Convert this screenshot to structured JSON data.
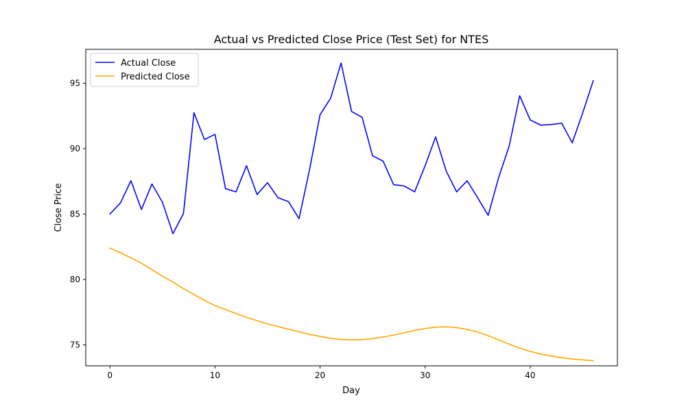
{
  "chart_data": {
    "type": "line",
    "title": "Actual vs Predicted Close Price (Test Set) for NTES",
    "xlabel": "Day",
    "ylabel": "Close Price",
    "xlim": [
      -2.3,
      48.3
    ],
    "ylim": [
      73.4,
      97.6
    ],
    "xticks": [
      0,
      10,
      20,
      30,
      40
    ],
    "yticks": [
      75,
      80,
      85,
      90,
      95
    ],
    "grid": false,
    "legend_position": "upper-left",
    "x": [
      0,
      1,
      2,
      3,
      4,
      5,
      6,
      7,
      8,
      9,
      10,
      11,
      12,
      13,
      14,
      15,
      16,
      17,
      18,
      19,
      20,
      21,
      22,
      23,
      24,
      25,
      26,
      27,
      28,
      29,
      30,
      31,
      32,
      33,
      34,
      35,
      36,
      37,
      38,
      39,
      40,
      41,
      42,
      43,
      44,
      45,
      46
    ],
    "series": [
      {
        "name": "Actual Close",
        "color": "#0000ff",
        "values": [
          85.0,
          85.85,
          87.55,
          85.35,
          87.3,
          85.9,
          83.5,
          85.05,
          92.75,
          90.7,
          91.1,
          86.95,
          86.7,
          88.7,
          86.5,
          87.4,
          86.25,
          85.95,
          84.65,
          88.4,
          92.6,
          93.85,
          96.55,
          92.85,
          92.4,
          89.45,
          89.05,
          87.25,
          87.15,
          86.7,
          88.7,
          90.9,
          88.3,
          86.7,
          87.55,
          86.25,
          84.9,
          87.8,
          90.2,
          94.05,
          92.2,
          91.8,
          91.85,
          91.95,
          90.45,
          92.75,
          95.2
        ]
      },
      {
        "name": "Predicted Close",
        "color": "#ffa500",
        "values": [
          82.4,
          82.05,
          81.65,
          81.25,
          80.75,
          80.25,
          79.8,
          79.3,
          78.85,
          78.4,
          78.0,
          77.7,
          77.4,
          77.1,
          76.85,
          76.6,
          76.4,
          76.2,
          76.0,
          75.8,
          75.65,
          75.5,
          75.42,
          75.38,
          75.4,
          75.48,
          75.6,
          75.75,
          75.92,
          76.1,
          76.25,
          76.35,
          76.38,
          76.32,
          76.18,
          75.98,
          75.7,
          75.38,
          75.05,
          74.75,
          74.5,
          74.3,
          74.15,
          74.02,
          73.92,
          73.85,
          73.8
        ]
      }
    ]
  }
}
